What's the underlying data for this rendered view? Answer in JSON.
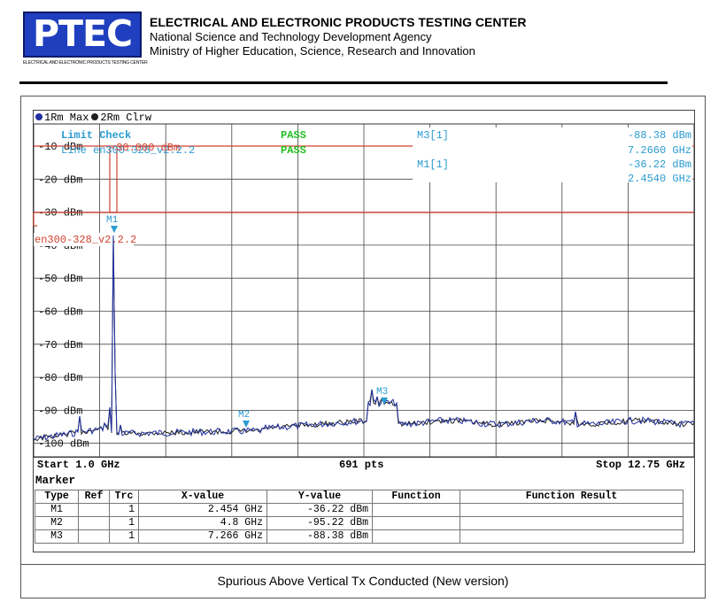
{
  "header": {
    "logo_text": "PTEC",
    "logo_subtitle": "ELECTRICAL AND ELECTRONIC PRODUCTS TESTING CENTER",
    "title": "ELECTRICAL AND ELECTRONIC PRODUCTS TESTING CENTER",
    "line2": "National Science and Technology Development Agency",
    "line3": "Ministry of Higher Education, Science, Research and Innovation"
  },
  "analyzer": {
    "trace1_label": "1Rm Max",
    "trace2_label": "2Rm Clrw",
    "limit_check_label": "Limit Check",
    "limit_line_label": "Line en300-328_v2.2.2",
    "limit_value_overlay": "-30.000 dBm",
    "pass1": "PASS",
    "pass2": "PASS",
    "m3_header": "M3[1]",
    "m3_level": "-88.38 dBm",
    "m3_freq": "7.2660 GHz",
    "m1_header": "M1[1]",
    "m1_level": "-36.22 dBm",
    "m1_freq": "2.4540 GHz",
    "limit_line_tag": "en300-328_v2.2.2",
    "marker_labels": [
      "M1",
      "M2",
      "M3"
    ],
    "y_tick_labels": [
      "-10 dBm",
      "-20 dBm",
      "-30 dBm",
      "-40 dBm",
      "-50 dBm",
      "-60 dBm",
      "-70 dBm",
      "-80 dBm",
      "-90 dBm",
      "-100 dBm"
    ],
    "start": "Start 1.0 GHz",
    "points": "691 pts",
    "stop": "Stop 12.75 GHz",
    "colors": {
      "trace1": "#2030a0",
      "trace2": "#202020",
      "limit": "#d04030",
      "marker": "#2a9bd0",
      "pass": "#22c022"
    }
  },
  "marker_table": {
    "title": "Marker",
    "columns": [
      "Type",
      "Ref",
      "Trc",
      "X-value",
      "Y-value",
      "Function",
      "Function Result"
    ],
    "rows": [
      {
        "type": "M1",
        "ref": "",
        "trc": "1",
        "x": "2.454 GHz",
        "y": "-36.22 dBm",
        "function": "",
        "result": ""
      },
      {
        "type": "M2",
        "ref": "",
        "trc": "1",
        "x": "4.8 GHz",
        "y": "-95.22 dBm",
        "function": "",
        "result": ""
      },
      {
        "type": "M3",
        "ref": "",
        "trc": "1",
        "x": "7.266 GHz",
        "y": "-88.38 dBm",
        "function": "",
        "result": ""
      }
    ]
  },
  "caption": "Spurious Above Vertical Tx Conducted (New version)"
}
